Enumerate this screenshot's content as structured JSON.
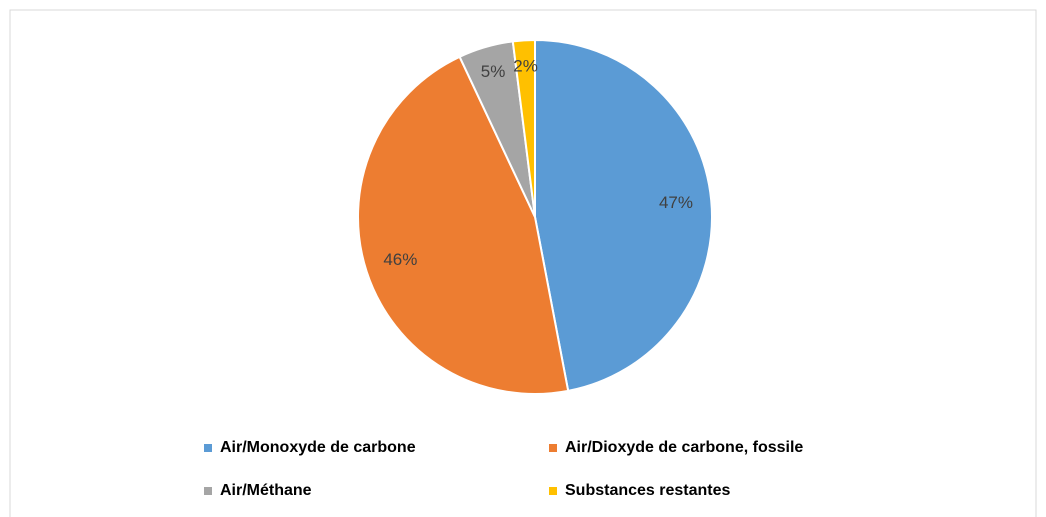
{
  "chart_data": {
    "type": "pie",
    "categories": [
      "Air/Monoxyde de carbone",
      "Air/Dioxyde de carbone, fossile",
      "Air/Méthane",
      "Substances restantes"
    ],
    "values": [
      47,
      46,
      5,
      2
    ],
    "value_labels": [
      "47%",
      "46%",
      "5%",
      "2%"
    ],
    "colors": [
      "#5b9bd5",
      "#ed7d31",
      "#a5a5a5",
      "#ffc000"
    ],
    "legend": "bottom"
  }
}
